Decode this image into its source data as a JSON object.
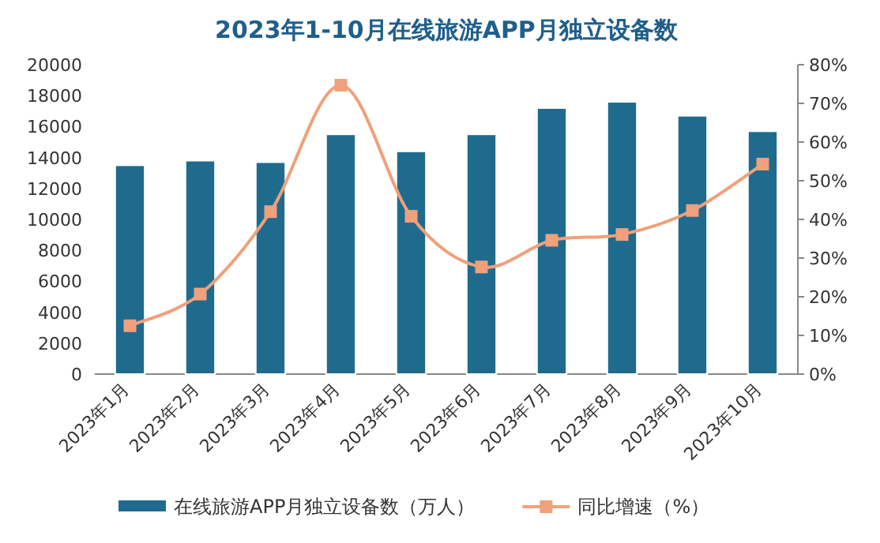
{
  "chart_data": {
    "type": "bar",
    "title": "2023年1-10月在线旅游APP月独立设备数",
    "categories": [
      "2023年1月",
      "2023年2月",
      "2023年3月",
      "2023年4月",
      "2023年5月",
      "2023年6月",
      "2023年7月",
      "2023年8月",
      "2023年9月",
      "2023年10月"
    ],
    "series": [
      {
        "name": "在线旅游APP月独立设备数（万人）",
        "color": "#1f6b8e",
        "values": [
          13500,
          13800,
          13700,
          15500,
          14400,
          15500,
          17200,
          17600,
          16700,
          15700
        ]
      },
      {
        "name": "同比增速（%）",
        "type": "line",
        "axis": "y2",
        "marker": "square",
        "color": "#f0a07a",
        "values": [
          12.5,
          20.7,
          42.0,
          74.7,
          40.8,
          27.7,
          34.6,
          36.1,
          42.3,
          54.3
        ]
      }
    ],
    "ylim": [
      0,
      20000
    ],
    "yticks": [
      0,
      2000,
      4000,
      6000,
      8000,
      10000,
      12000,
      14000,
      16000,
      18000,
      20000
    ],
    "y2lim": [
      0,
      80
    ],
    "y2ticks": [
      {
        "value": 0,
        "label": "0%"
      },
      {
        "value": 10,
        "label": "10%"
      },
      {
        "value": 20,
        "label": "20%"
      },
      {
        "value": 30,
        "label": "30%"
      },
      {
        "value": 40,
        "label": "40%"
      },
      {
        "value": 50,
        "label": "50%"
      },
      {
        "value": 60,
        "label": "60%"
      },
      {
        "value": 70,
        "label": "70%"
      },
      {
        "value": 80,
        "label": "80%"
      }
    ],
    "legend": "bottom"
  }
}
